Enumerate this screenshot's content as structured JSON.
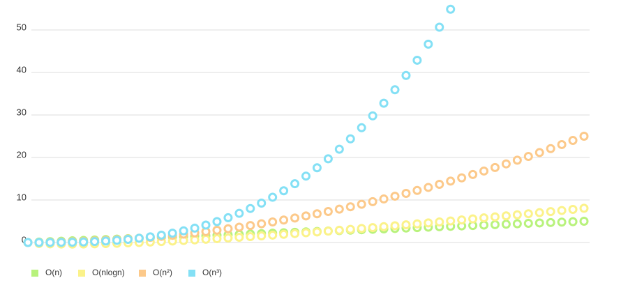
{
  "chart_data": {
    "type": "scatter",
    "x": [
      0,
      0.1,
      0.2,
      0.3,
      0.4,
      0.5,
      0.6,
      0.7,
      0.8,
      0.9,
      1,
      1.1,
      1.2,
      1.3,
      1.4,
      1.5,
      1.6,
      1.7,
      1.8,
      1.9,
      2,
      2.1,
      2.2,
      2.3,
      2.4,
      2.5,
      2.6,
      2.7,
      2.8,
      2.9,
      3,
      3.1,
      3.2,
      3.3,
      3.4,
      3.5,
      3.6,
      3.7,
      3.8,
      3.9,
      4,
      4.1,
      4.2,
      4.3,
      4.4,
      4.5,
      4.6,
      4.7,
      4.8,
      4.9,
      5
    ],
    "xlim": [
      0,
      5
    ],
    "ylim": [
      0,
      55
    ],
    "yticks": [
      0,
      10,
      20,
      30,
      40,
      50
    ],
    "grid": true,
    "legend": "bottom-left",
    "series": [
      {
        "name": "O(n)",
        "color": "#b8f27c",
        "values": [
          0,
          0.1,
          0.2,
          0.3,
          0.4,
          0.5,
          0.6,
          0.7,
          0.8,
          0.9,
          1,
          1.1,
          1.2,
          1.3,
          1.4,
          1.5,
          1.6,
          1.7,
          1.8,
          1.9,
          2,
          2.1,
          2.2,
          2.3,
          2.4,
          2.5,
          2.6,
          2.7,
          2.8,
          2.9,
          3,
          3.1,
          3.2,
          3.3,
          3.4,
          3.5,
          3.6,
          3.7,
          3.8,
          3.9,
          4,
          4.1,
          4.2,
          4.3,
          4.4,
          4.5,
          4.6,
          4.7,
          4.8,
          4.9,
          5
        ]
      },
      {
        "name": "O(nlogn)",
        "color": "#fbf28a",
        "values": [
          0,
          -0.23,
          -0.32,
          -0.36,
          -0.37,
          -0.35,
          -0.31,
          -0.25,
          -0.18,
          -0.09,
          0,
          0.1,
          0.22,
          0.34,
          0.47,
          0.61,
          0.75,
          0.9,
          1.06,
          1.22,
          1.39,
          1.56,
          1.73,
          1.92,
          2.1,
          2.29,
          2.48,
          2.68,
          2.88,
          3.09,
          3.3,
          3.51,
          3.72,
          3.94,
          4.16,
          4.38,
          4.61,
          4.84,
          5.07,
          5.31,
          5.55,
          5.79,
          6.03,
          6.27,
          6.52,
          6.77,
          7.02,
          7.27,
          7.53,
          7.79,
          8.05
        ]
      },
      {
        "name": "O(n²)",
        "color": "#fcc98a",
        "values": [
          0,
          0.01,
          0.04,
          0.09,
          0.16,
          0.25,
          0.36,
          0.49,
          0.64,
          0.81,
          1,
          1.21,
          1.44,
          1.69,
          1.96,
          2.25,
          2.56,
          2.89,
          3.24,
          3.61,
          4,
          4.41,
          4.84,
          5.29,
          5.76,
          6.25,
          6.76,
          7.29,
          7.84,
          8.41,
          9,
          9.61,
          10.24,
          10.89,
          11.56,
          12.25,
          12.96,
          13.69,
          14.44,
          15.21,
          16,
          16.81,
          17.64,
          18.49,
          19.36,
          20.25,
          21.16,
          22.09,
          23.04,
          24.01,
          25
        ]
      },
      {
        "name": "O(n³)",
        "color": "#84e0f5",
        "values": [
          0,
          0.001,
          0.008,
          0.027,
          0.064,
          0.125,
          0.216,
          0.343,
          0.512,
          0.729,
          1,
          1.331,
          1.728,
          2.197,
          2.744,
          3.375,
          4.096,
          4.913,
          5.832,
          6.859,
          8,
          9.261,
          10.648,
          12.167,
          13.824,
          15.625,
          17.576,
          19.683,
          21.952,
          24.389,
          27,
          29.791,
          32.768,
          35.937,
          39.304,
          42.875,
          46.656,
          50.653,
          54.872,
          null,
          null,
          null,
          null,
          null,
          null,
          null,
          null,
          null,
          null,
          null,
          null
        ]
      }
    ]
  }
}
